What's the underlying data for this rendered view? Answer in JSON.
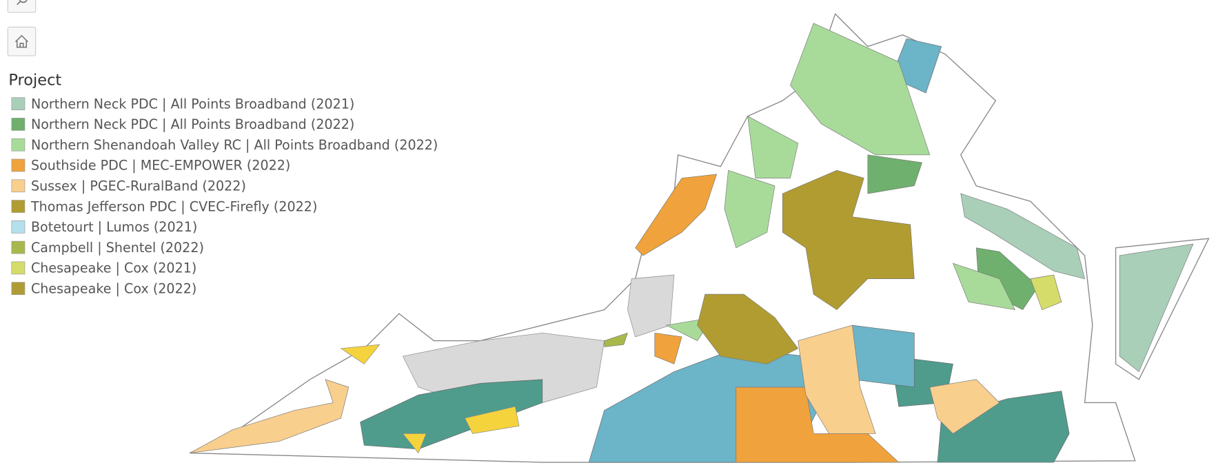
{
  "legend": {
    "title": "Project",
    "items": [
      {
        "label": "Northern Neck PDC | All Points Broadband (2021)",
        "color": "#a9cfb9"
      },
      {
        "label": "Northern Neck PDC | All Points Broadband (2022)",
        "color": "#6fb06f"
      },
      {
        "label": "Northern Shenandoah Valley RC | All Points Broadband (2022)",
        "color": "#a8db9a"
      },
      {
        "label": "Southside PDC | MEC-EMPOWER (2022)",
        "color": "#f0a23c"
      },
      {
        "label": "Sussex | PGEC-RuralBand (2022)",
        "color": "#f9cf8e"
      },
      {
        "label": "Thomas Jefferson PDC | CVEC-Firefly (2022)",
        "color": "#b19c32"
      },
      {
        "label": "Botetourt | Lumos (2021)",
        "color": "#b3e0ec"
      },
      {
        "label": "Campbell | Shentel (2022)",
        "color": "#a9b84a"
      },
      {
        "label": "Chesapeake | Cox (2021)",
        "color": "#d6dc6a"
      },
      {
        "label": "Chesapeake | Cox (2022)",
        "color": "#b09c35"
      }
    ]
  }
}
